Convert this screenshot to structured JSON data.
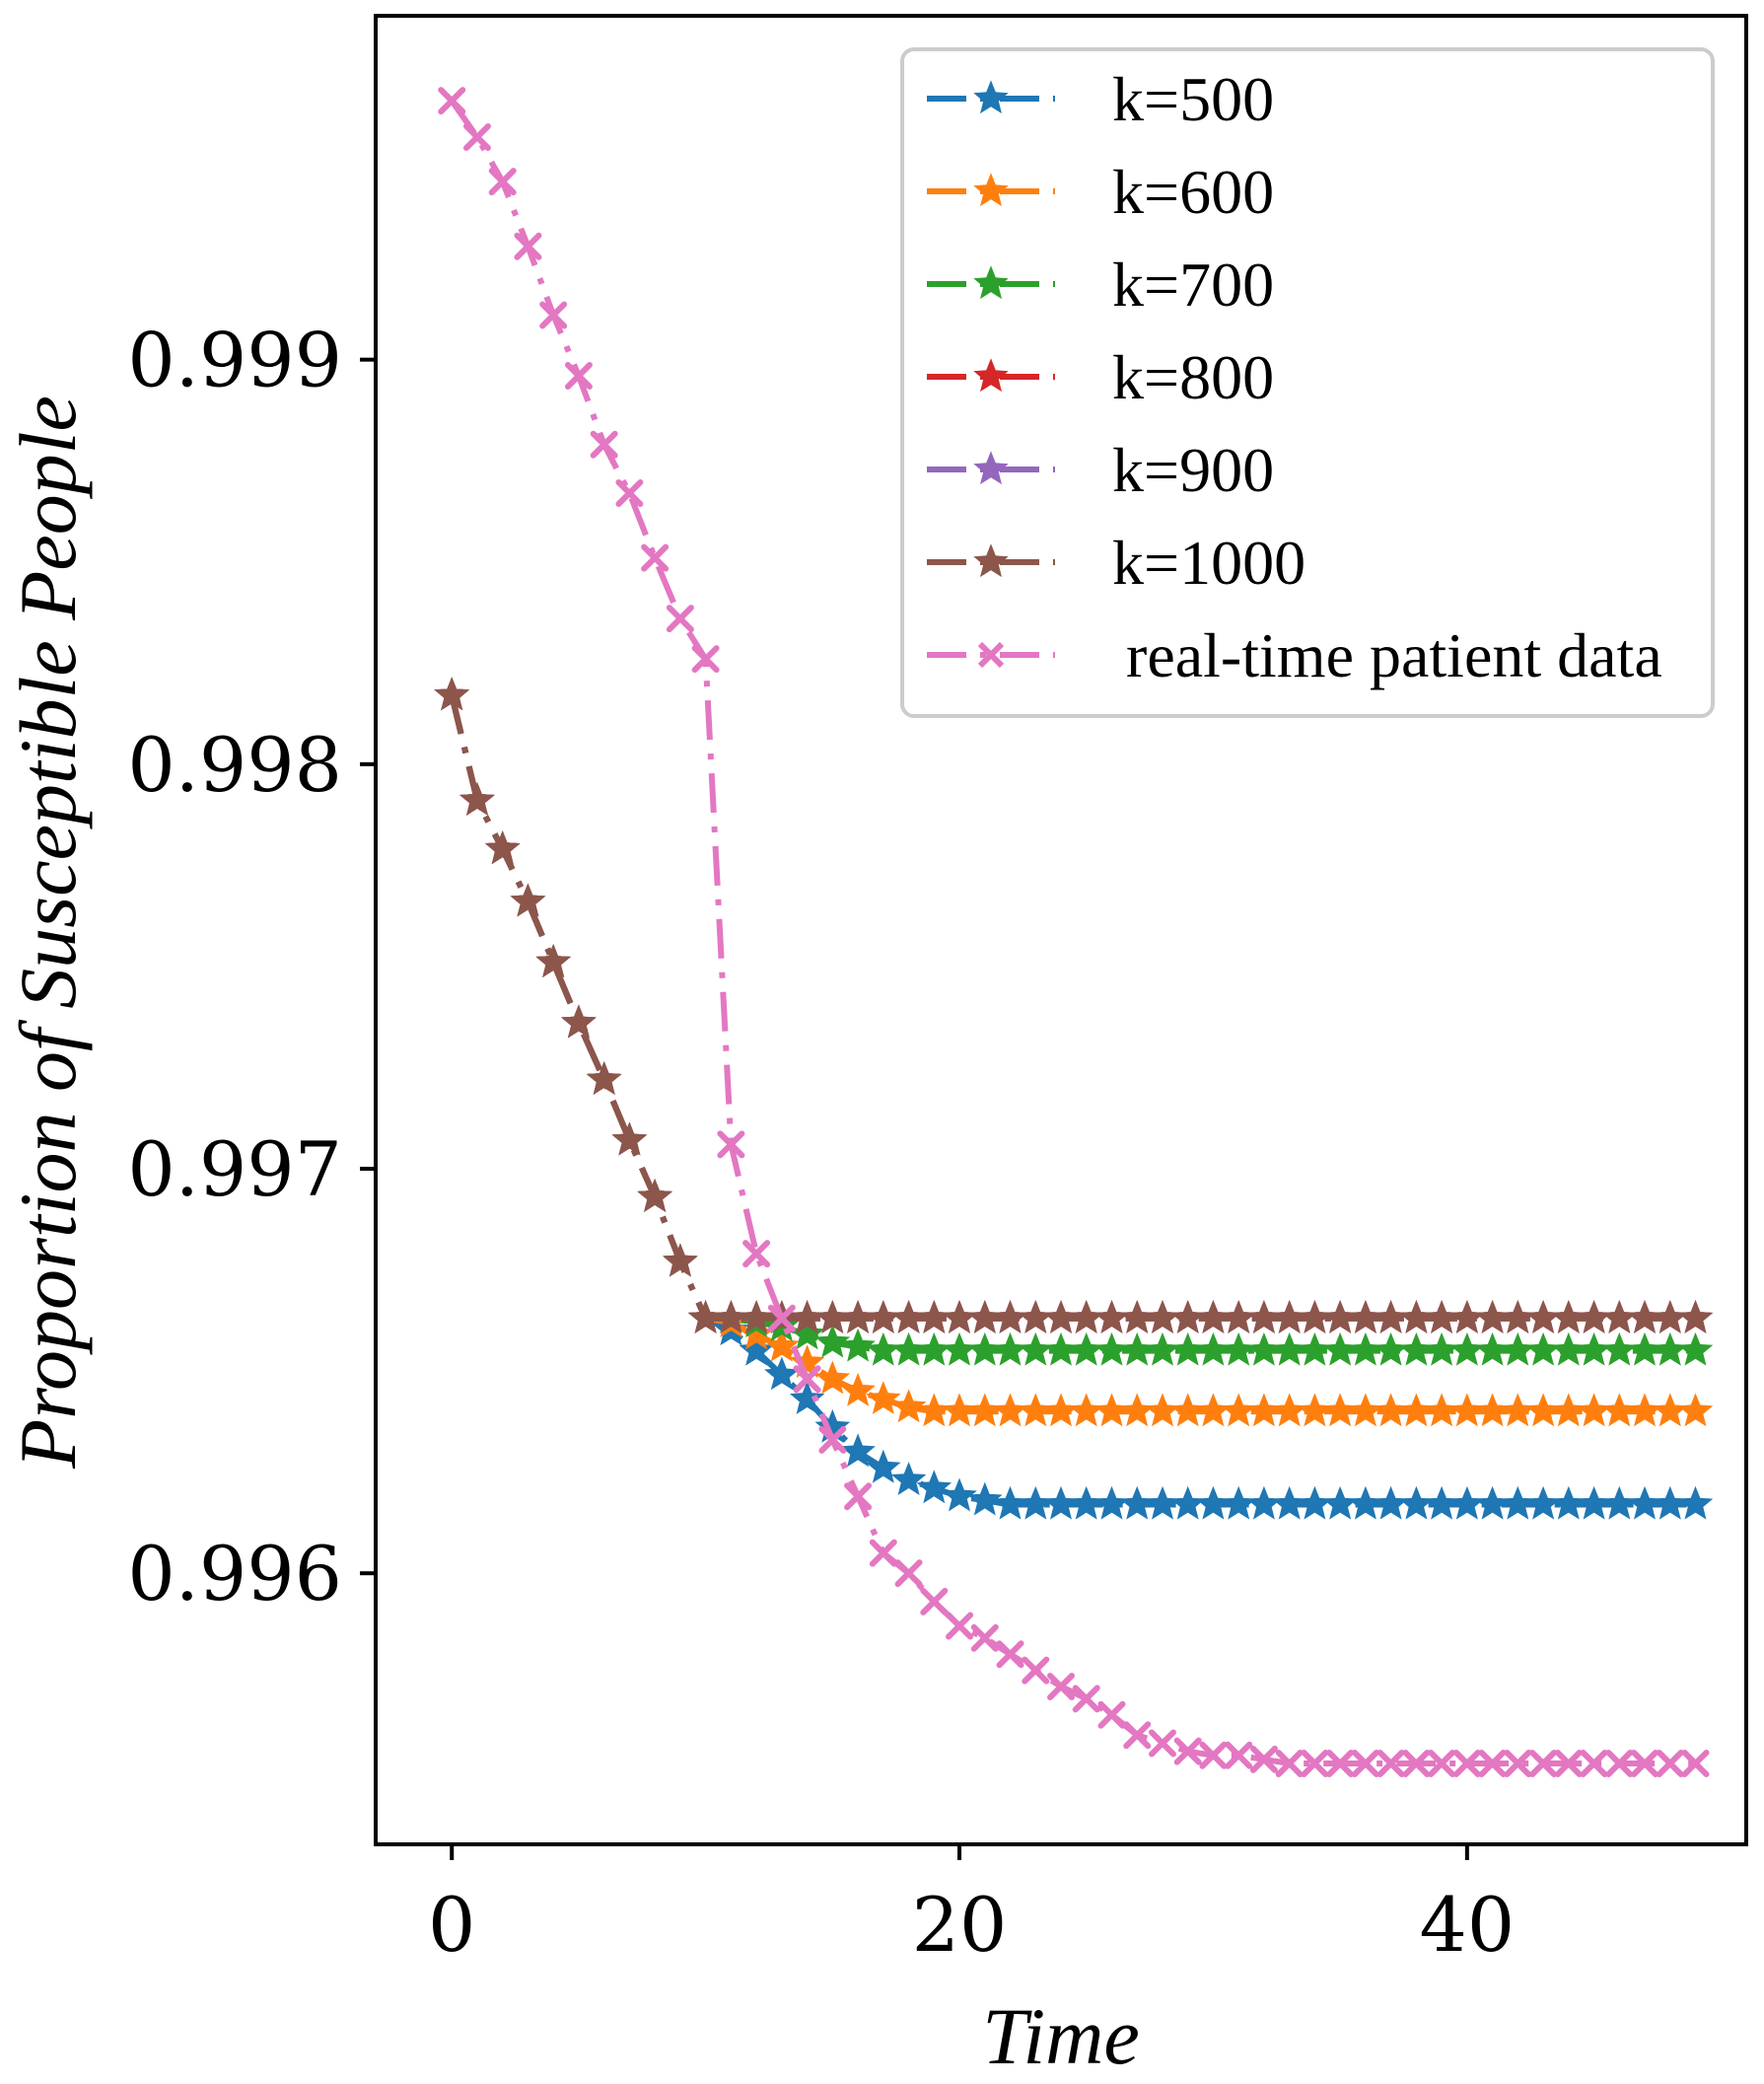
{
  "chart_data": {
    "type": "line",
    "title": "",
    "xlabel": "Time",
    "ylabel": "Proportion of Susceptible People",
    "xlim": [
      -3,
      51
    ],
    "ylim": [
      0.99533,
      0.99985
    ],
    "xticks": [
      0,
      20,
      40
    ],
    "xtick_labels": [
      "0",
      "20",
      "40"
    ],
    "yticks": [
      0.996,
      0.997,
      0.998,
      0.999
    ],
    "ytick_labels": [
      "0.996",
      "0.997",
      "0.998",
      "0.999"
    ],
    "legend_position": "top-right",
    "x": [
      0,
      1,
      2,
      3,
      4,
      5,
      6,
      7,
      8,
      9,
      10,
      11,
      12,
      13,
      14,
      15,
      16,
      17,
      18,
      19,
      20,
      21,
      22,
      23,
      24,
      25,
      26,
      27,
      28,
      29,
      30,
      31,
      32,
      33,
      34,
      35,
      36,
      37,
      38,
      39,
      40,
      41,
      42,
      43,
      44,
      45,
      46,
      47,
      48,
      49
    ],
    "series": [
      {
        "name": "k=500",
        "color": "#1f77b4",
        "marker": "star",
        "values": [
          0.99817,
          0.99791,
          0.99779,
          0.99766,
          0.99751,
          0.99736,
          0.99722,
          0.99707,
          0.99693,
          0.99677,
          0.99663,
          0.9966,
          0.99655,
          0.99649,
          0.99643,
          0.99636,
          0.9963,
          0.99626,
          0.99623,
          0.99621,
          0.99619,
          0.99618,
          0.99617,
          0.99617,
          0.99617,
          0.99617,
          0.99617,
          0.99617,
          0.99617,
          0.99617,
          0.99617,
          0.99617,
          0.99617,
          0.99617,
          0.99617,
          0.99617,
          0.99617,
          0.99617,
          0.99617,
          0.99617,
          0.99617,
          0.99617,
          0.99617,
          0.99617,
          0.99617,
          0.99617,
          0.99617,
          0.99617,
          0.99617,
          0.99617
        ]
      },
      {
        "name": "k=600",
        "color": "#ff7f0e",
        "marker": "star",
        "values": [
          0.99817,
          0.99791,
          0.99779,
          0.99766,
          0.99751,
          0.99736,
          0.99722,
          0.99707,
          0.99693,
          0.99677,
          0.99663,
          0.99662,
          0.99659,
          0.99656,
          0.99652,
          0.99648,
          0.99645,
          0.99643,
          0.99641,
          0.9964,
          0.9964,
          0.9964,
          0.9964,
          0.9964,
          0.9964,
          0.9964,
          0.9964,
          0.9964,
          0.9964,
          0.9964,
          0.9964,
          0.9964,
          0.9964,
          0.9964,
          0.9964,
          0.9964,
          0.9964,
          0.9964,
          0.9964,
          0.9964,
          0.9964,
          0.9964,
          0.9964,
          0.9964,
          0.9964,
          0.9964,
          0.9964,
          0.9964,
          0.9964,
          0.9964
        ]
      },
      {
        "name": "k=700",
        "color": "#2ca02c",
        "marker": "star",
        "values": [
          0.99817,
          0.99791,
          0.99779,
          0.99766,
          0.99751,
          0.99736,
          0.99722,
          0.99707,
          0.99693,
          0.99677,
          0.99663,
          0.99663,
          0.99662,
          0.99661,
          0.99659,
          0.99657,
          0.99656,
          0.99655,
          0.99655,
          0.99655,
          0.99655,
          0.99655,
          0.99655,
          0.99655,
          0.99655,
          0.99655,
          0.99655,
          0.99655,
          0.99655,
          0.99655,
          0.99655,
          0.99655,
          0.99655,
          0.99655,
          0.99655,
          0.99655,
          0.99655,
          0.99655,
          0.99655,
          0.99655,
          0.99655,
          0.99655,
          0.99655,
          0.99655,
          0.99655,
          0.99655,
          0.99655,
          0.99655,
          0.99655,
          0.99655
        ]
      },
      {
        "name": "k=800",
        "color": "#d62728",
        "marker": "star",
        "values": [
          0.99817,
          0.99791,
          0.99779,
          0.99766,
          0.99751,
          0.99736,
          0.99722,
          0.99707,
          0.99693,
          0.99677,
          0.99663,
          0.99663,
          0.99663,
          0.99663,
          0.99663,
          0.99663,
          0.99663,
          0.99663,
          0.99663,
          0.99663,
          0.99663,
          0.99663,
          0.99663,
          0.99663,
          0.99663,
          0.99663,
          0.99663,
          0.99663,
          0.99663,
          0.99663,
          0.99663,
          0.99663,
          0.99663,
          0.99663,
          0.99663,
          0.99663,
          0.99663,
          0.99663,
          0.99663,
          0.99663,
          0.99663,
          0.99663,
          0.99663,
          0.99663,
          0.99663,
          0.99663,
          0.99663,
          0.99663,
          0.99663,
          0.99663
        ]
      },
      {
        "name": "k=900",
        "color": "#9467bd",
        "marker": "star",
        "values": [
          0.99817,
          0.99791,
          0.99779,
          0.99766,
          0.99751,
          0.99736,
          0.99722,
          0.99707,
          0.99693,
          0.99677,
          0.99663,
          0.99663,
          0.99663,
          0.99663,
          0.99663,
          0.99663,
          0.99663,
          0.99663,
          0.99663,
          0.99663,
          0.99663,
          0.99663,
          0.99663,
          0.99663,
          0.99663,
          0.99663,
          0.99663,
          0.99663,
          0.99663,
          0.99663,
          0.99663,
          0.99663,
          0.99663,
          0.99663,
          0.99663,
          0.99663,
          0.99663,
          0.99663,
          0.99663,
          0.99663,
          0.99663,
          0.99663,
          0.99663,
          0.99663,
          0.99663,
          0.99663,
          0.99663,
          0.99663,
          0.99663,
          0.99663
        ]
      },
      {
        "name": "k=1000",
        "color": "#8c564b",
        "marker": "star",
        "values": [
          0.99817,
          0.99791,
          0.99779,
          0.99766,
          0.99751,
          0.99736,
          0.99722,
          0.99707,
          0.99693,
          0.99677,
          0.99663,
          0.99663,
          0.99663,
          0.99663,
          0.99663,
          0.99663,
          0.99663,
          0.99663,
          0.99663,
          0.99663,
          0.99663,
          0.99663,
          0.99663,
          0.99663,
          0.99663,
          0.99663,
          0.99663,
          0.99663,
          0.99663,
          0.99663,
          0.99663,
          0.99663,
          0.99663,
          0.99663,
          0.99663,
          0.99663,
          0.99663,
          0.99663,
          0.99663,
          0.99663,
          0.99663,
          0.99663,
          0.99663,
          0.99663,
          0.99663,
          0.99663,
          0.99663,
          0.99663,
          0.99663,
          0.99663
        ]
      },
      {
        "name": "real-time patient data",
        "color": "#e377c2",
        "marker": "x",
        "values": [
          0.99964,
          0.99955,
          0.99944,
          0.99928,
          0.99911,
          0.99896,
          0.99879,
          0.99867,
          0.99851,
          0.99836,
          0.99826,
          0.99706,
          0.99679,
          0.99663,
          0.99648,
          0.99633,
          0.99619,
          0.99605,
          0.996,
          0.99593,
          0.99587,
          0.99584,
          0.9958,
          0.99576,
          0.99572,
          0.99569,
          0.99565,
          0.9956,
          0.99558,
          0.99556,
          0.99555,
          0.99555,
          0.99554,
          0.99553,
          0.99553,
          0.99553,
          0.99553,
          0.99553,
          0.99553,
          0.99553,
          0.99553,
          0.99553,
          0.99553,
          0.99553,
          0.99553,
          0.99553,
          0.99553,
          0.99553,
          0.99553,
          0.99553
        ]
      }
    ]
  }
}
